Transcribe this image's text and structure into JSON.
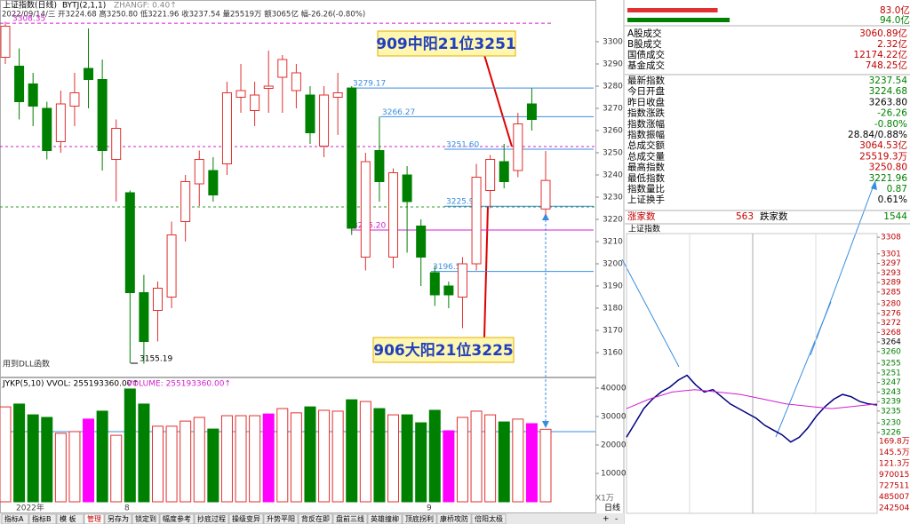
{
  "header": {
    "title": "上证指数(日线)",
    "indicator": "BYTJ(2,1,1)",
    "zhangf": "ZHANGF: 0.40↑",
    "info": "2022/09/14/三 开3224.68 高3250.80 低3221.96 收3237.54 量25519万 额3065亿 幅-26.26(-0.80%)",
    "dll_note": "用到DLL函数"
  },
  "annotations": [
    "909中阳21位3251",
    "906大阳21位3225"
  ],
  "chart_data": [
    {
      "type": "candlestick",
      "up_color": "#e03030",
      "down_color": "#008000",
      "ylim": [
        3150.8,
        3312.8
      ],
      "yticks": [
        3160,
        3170,
        3180,
        3190,
        3200,
        3210,
        3220,
        3230,
        3240,
        3250,
        3260,
        3270,
        3280,
        3290,
        3300
      ],
      "x_labels": [
        "2022年",
        "8",
        "9"
      ],
      "levels": [
        {
          "value": 3308.35,
          "label": "3308.35",
          "color": "#d020d0"
        },
        {
          "value": 3279.17,
          "label": "3279.17",
          "color": "#3a8ee0"
        },
        {
          "value": 3266.27,
          "label": "3266.27",
          "color": "#3a8ee0"
        },
        {
          "value": 3251.6,
          "label": "3251.60",
          "color": "#3a8ee0"
        },
        {
          "value": 3225.91,
          "label": "3225.91",
          "color": "#3a8ee0"
        },
        {
          "value": 3215.2,
          "label": "3215.20",
          "color": "#d020d0"
        },
        {
          "value": 3196.54,
          "label": "3196.54",
          "color": "#3a8ee0"
        },
        {
          "value": 3155.19,
          "label": "3155.19",
          "color": "#000000"
        }
      ],
      "candles": [
        {
          "open": 3293,
          "high": 3309,
          "low": 3290,
          "close": 3307
        },
        {
          "open": 3289,
          "high": 3297,
          "low": 3265,
          "close": 3273
        },
        {
          "open": 3281,
          "high": 3286,
          "low": 3262,
          "close": 3271
        },
        {
          "open": 3270,
          "high": 3273,
          "low": 3247,
          "close": 3251
        },
        {
          "open": 3255,
          "high": 3278,
          "low": 3250,
          "close": 3272
        },
        {
          "open": 3271,
          "high": 3286,
          "low": 3262,
          "close": 3277
        },
        {
          "open": 3288,
          "high": 3306,
          "low": 3270,
          "close": 3283
        },
        {
          "open": 3283,
          "high": 3292,
          "low": 3242,
          "close": 3251
        },
        {
          "open": 3247,
          "high": 3265,
          "low": 3228,
          "close": 3261
        },
        {
          "open": 3232,
          "high": 3233,
          "low": 3155.19,
          "close": 3187
        },
        {
          "open": 3187,
          "high": 3195,
          "low": 3155,
          "close": 3165
        },
        {
          "open": 3179,
          "high": 3192,
          "low": 3165,
          "close": 3189
        },
        {
          "open": 3185,
          "high": 3219,
          "low": 3180,
          "close": 3213
        },
        {
          "open": 3219,
          "high": 3240,
          "low": 3210,
          "close": 3237
        },
        {
          "open": 3236,
          "high": 3251,
          "low": 3226,
          "close": 3247
        },
        {
          "open": 3242,
          "high": 3248,
          "low": 3228,
          "close": 3231
        },
        {
          "open": 3245,
          "high": 3282,
          "low": 3240,
          "close": 3277
        },
        {
          "open": 3275,
          "high": 3290,
          "low": 3268,
          "close": 3278
        },
        {
          "open": 3269,
          "high": 3282,
          "low": 3262,
          "close": 3276
        },
        {
          "open": 3279,
          "high": 3296,
          "low": 3268,
          "close": 3280
        },
        {
          "open": 3284,
          "high": 3294,
          "low": 3268,
          "close": 3292
        },
        {
          "open": 3278,
          "high": 3290,
          "low": 3270,
          "close": 3286
        },
        {
          "open": 3276,
          "high": 3280,
          "low": 3254,
          "close": 3259
        },
        {
          "open": 3253,
          "high": 3280,
          "low": 3248,
          "close": 3276
        },
        {
          "open": 3275,
          "high": 3286,
          "low": 3258,
          "close": 3277
        },
        {
          "open": 3279.17,
          "high": 3280,
          "low": 3213,
          "close": 3216
        },
        {
          "open": 3203,
          "high": 3250,
          "low": 3197,
          "close": 3246
        },
        {
          "open": 3251,
          "high": 3266.27,
          "low": 3228,
          "close": 3237
        },
        {
          "open": 3203,
          "high": 3243,
          "low": 3198,
          "close": 3241
        },
        {
          "open": 3240,
          "high": 3244,
          "low": 3205,
          "close": 3228
        },
        {
          "open": 3217,
          "high": 3220,
          "low": 3190,
          "close": 3203
        },
        {
          "open": 3196,
          "high": 3199,
          "low": 3181,
          "close": 3186
        },
        {
          "open": 3190,
          "high": 3192,
          "low": 3180,
          "close": 3186
        },
        {
          "open": 3185,
          "high": 3203,
          "low": 3171,
          "close": 3200
        },
        {
          "open": 3200,
          "high": 3245,
          "low": 3197,
          "close": 3239
        },
        {
          "open": 3233,
          "high": 3249,
          "low": 3225,
          "close": 3247
        },
        {
          "open": 3246,
          "high": 3254,
          "low": 3234,
          "close": 3237
        },
        {
          "open": 3242,
          "high": 3268,
          "low": 3239,
          "close": 3263
        },
        {
          "open": 3272,
          "high": 3279,
          "low": 3260,
          "close": 3265
        },
        {
          "open": 3224.68,
          "high": 3250.8,
          "low": 3221.96,
          "close": 3237.54
        }
      ]
    },
    {
      "type": "bar",
      "title": "JYKP(5,10)  VVOL: 255193360.00↑",
      "subtitle": "VOLUME: 255193360.00↑",
      "unit_label": "X1万",
      "ylim": [
        0,
        42190
      ],
      "yticks": [
        10000,
        20000,
        30000,
        40000
      ],
      "values": [
        33400,
        34400,
        30600,
        29700,
        24100,
        24700,
        29100,
        31900,
        23400,
        39700,
        34400,
        26600,
        26600,
        28400,
        29700,
        25600,
        30300,
        30300,
        30300,
        30900,
        32800,
        31300,
        33400,
        32200,
        31900,
        35900,
        35300,
        32800,
        30600,
        30600,
        27800,
        32200,
        25000,
        29700,
        31900,
        30600,
        28100,
        29100,
        27500,
        25519
      ],
      "colors": [
        "#e03030",
        "#008000",
        "#008000",
        "#008000",
        "#e03030",
        "#e03030",
        "#ff00ff",
        "#008000",
        "#e03030",
        "#008000",
        "#008000",
        "#e03030",
        "#e03030",
        "#e03030",
        "#e03030",
        "#008000",
        "#e03030",
        "#e03030",
        "#e03030",
        "#ff00ff",
        "#e03030",
        "#e03030",
        "#008000",
        "#e03030",
        "#e03030",
        "#008000",
        "#e03030",
        "#008000",
        "#e03030",
        "#008000",
        "#008000",
        "#008000",
        "#ff00ff",
        "#e03030",
        "#e03030",
        "#e03030",
        "#008000",
        "#e03030",
        "#ff00ff",
        "#e03030"
      ]
    },
    {
      "type": "line",
      "title": "上证指数",
      "ylim": [
        3223,
        3309.9
      ],
      "yticks": [
        3308,
        3301,
        3297,
        3293,
        3289,
        3285,
        3280,
        3276,
        3272,
        3268,
        3264,
        3260,
        3255,
        3251,
        3247,
        3243,
        3239,
        3235,
        3230,
        3226
      ],
      "volume_labels": [
        "169.8万",
        "145.5万",
        "121.3万",
        "970015",
        "727511",
        "485007",
        "242504"
      ],
      "series": [
        {
          "color": "#000080",
          "values": [
            3224,
            3230,
            3236,
            3240,
            3243,
            3245,
            3248,
            3250,
            3246,
            3243,
            3244,
            3241,
            3238,
            3236,
            3234,
            3232,
            3229,
            3227,
            3225,
            3222,
            3224,
            3228,
            3233,
            3237,
            3240,
            3242,
            3241,
            3239,
            3238,
            3237.54
          ]
        },
        {
          "color": "#d020d0",
          "values": [
            3236,
            3240,
            3243,
            3244,
            3243,
            3242,
            3240,
            3238,
            3237,
            3236,
            3237,
            3238
          ]
        }
      ]
    }
  ],
  "panel": {
    "breadth_bars": {
      "values": [
        83.0,
        94.0
      ],
      "value_labels": [
        "83.0亿",
        "94.0亿"
      ],
      "colors": [
        "#e03030",
        "#008000"
      ]
    },
    "rows": [
      {
        "label": "A股成交",
        "value": "3060.89亿",
        "color": "#c00000"
      },
      {
        "label": "B股成交",
        "value": "2.32亿",
        "color": "#c00000"
      },
      {
        "label": "国债成交",
        "value": "12174.22亿",
        "color": "#c00000"
      },
      {
        "label": "基金成交",
        "value": "748.25亿",
        "color": "#c00000"
      },
      {
        "label": "最新指数",
        "value": "3237.54",
        "color": "#008000"
      },
      {
        "label": "今日开盘",
        "value": "3224.68",
        "color": "#008000"
      },
      {
        "label": "昨日收盘",
        "value": "3263.80",
        "color": "#000000"
      },
      {
        "label": "指数涨跌",
        "value": "-26.26",
        "color": "#008000"
      },
      {
        "label": "指数涨幅",
        "value": "-0.80%",
        "color": "#008000"
      },
      {
        "label": "指数振幅",
        "value": "28.84/0.88%",
        "color": "#000000"
      },
      {
        "label": "总成交额",
        "value": "3064.53亿",
        "color": "#c00000"
      },
      {
        "label": "总成交量",
        "value": "25519.3万",
        "color": "#c00000"
      },
      {
        "label": "最高指数",
        "value": "3250.80",
        "color": "#c00000"
      },
      {
        "label": "最低指数",
        "value": "3221.96",
        "color": "#008000"
      },
      {
        "label": "指数量比",
        "value": "0.87",
        "color": "#008000"
      },
      {
        "label": "上证换手",
        "value": "0.61%",
        "color": "#000000"
      }
    ],
    "up_label": "涨家数",
    "up_count": "563",
    "down_label": "跌家数",
    "down_count": "1544"
  },
  "tabs": [
    "指标A",
    "指标B",
    "模 板",
    "管理",
    "另存为",
    "锁定到",
    "幅度参考",
    "抄底过程",
    "操级变异",
    "升势平阳",
    "背反在即",
    "盘前三线",
    "英雄撞柳",
    "顶底拐利",
    "康桥攻防",
    "倍阳太极"
  ],
  "footer": {
    "period": "日线",
    "plus": "+",
    "minus": "-"
  }
}
